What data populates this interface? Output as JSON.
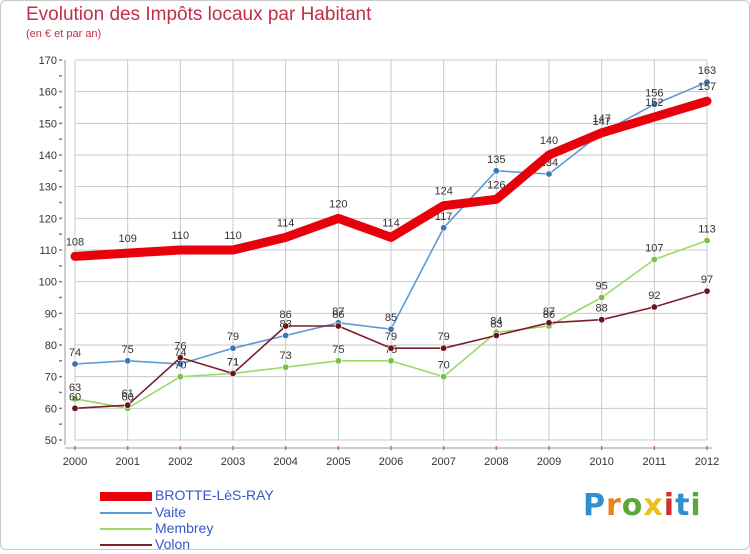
{
  "header": {
    "title": "Evolution des Impôts locaux par Habitant",
    "subtitle": "(en € et par an)"
  },
  "colors": {
    "title": "#c0304a",
    "legend_text": "#3a56c8",
    "grid": "#c8c8c8",
    "axis": "#999999"
  },
  "logo": {
    "text": "Proxiti",
    "letter_colors": [
      "#2f8fd0",
      "#e8841c",
      "#5aa83a",
      "#e8c21c",
      "#d0302f",
      "#2f8fd0",
      "#5aa83a"
    ]
  },
  "chart_data": {
    "type": "line",
    "title": "Evolution des Impôts locaux par Habitant",
    "subtitle": "(en € et par an)",
    "x": [
      "2000",
      "2001",
      "2002",
      "2003",
      "2004",
      "2005",
      "2006",
      "2007",
      "2008",
      "2009",
      "2010",
      "2011",
      "2012"
    ],
    "ylim": [
      50,
      170
    ],
    "yticks": [
      50,
      60,
      70,
      80,
      90,
      100,
      110,
      120,
      130,
      140,
      150,
      160,
      170
    ],
    "grid": true,
    "legend_position": "bottom-left",
    "series": [
      {
        "name": "BROTTE-LèS-RAY",
        "color": "#e8000b",
        "values": [
          108,
          109,
          110,
          110,
          114,
          120,
          114,
          124,
          126,
          140,
          147,
          152,
          157
        ]
      },
      {
        "name": "Vaite",
        "color": "#5b9bd5",
        "marker": "#3a78b5",
        "values": [
          74,
          75,
          74,
          79,
          83,
          87,
          85,
          117,
          135,
          134,
          147,
          156,
          163
        ]
      },
      {
        "name": "Membrey",
        "color": "#9ad96a",
        "marker": "#7bc043",
        "values": [
          63,
          60,
          70,
          71,
          73,
          75,
          75,
          70,
          84,
          86,
          95,
          107,
          113
        ]
      },
      {
        "name": "Volon",
        "color": "#7a1f2b",
        "marker": "#6a1420",
        "values": [
          60,
          61,
          76,
          71,
          86,
          86,
          79,
          79,
          83,
          87,
          88,
          92,
          97
        ]
      }
    ]
  }
}
